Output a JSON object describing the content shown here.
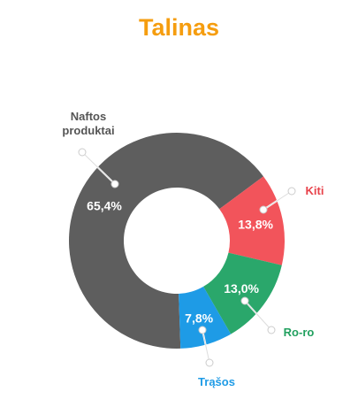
{
  "chart_data": {
    "type": "donut",
    "title": "Talinas",
    "categories": [
      "Naftos produktai",
      "Kiti",
      "Ro-ro",
      "Trąšos"
    ],
    "values": [
      65.4,
      13.8,
      13.0,
      7.8
    ],
    "value_labels": [
      "65,4%",
      "13,8%",
      "13,0%",
      "7,8%"
    ],
    "colors": [
      "#5e5e5e",
      "#f2545b",
      "#2aa76b",
      "#1e9be6"
    ],
    "label_colors": [
      "#555555",
      "#e8434b",
      "#22a05f",
      "#1e9be6"
    ]
  }
}
